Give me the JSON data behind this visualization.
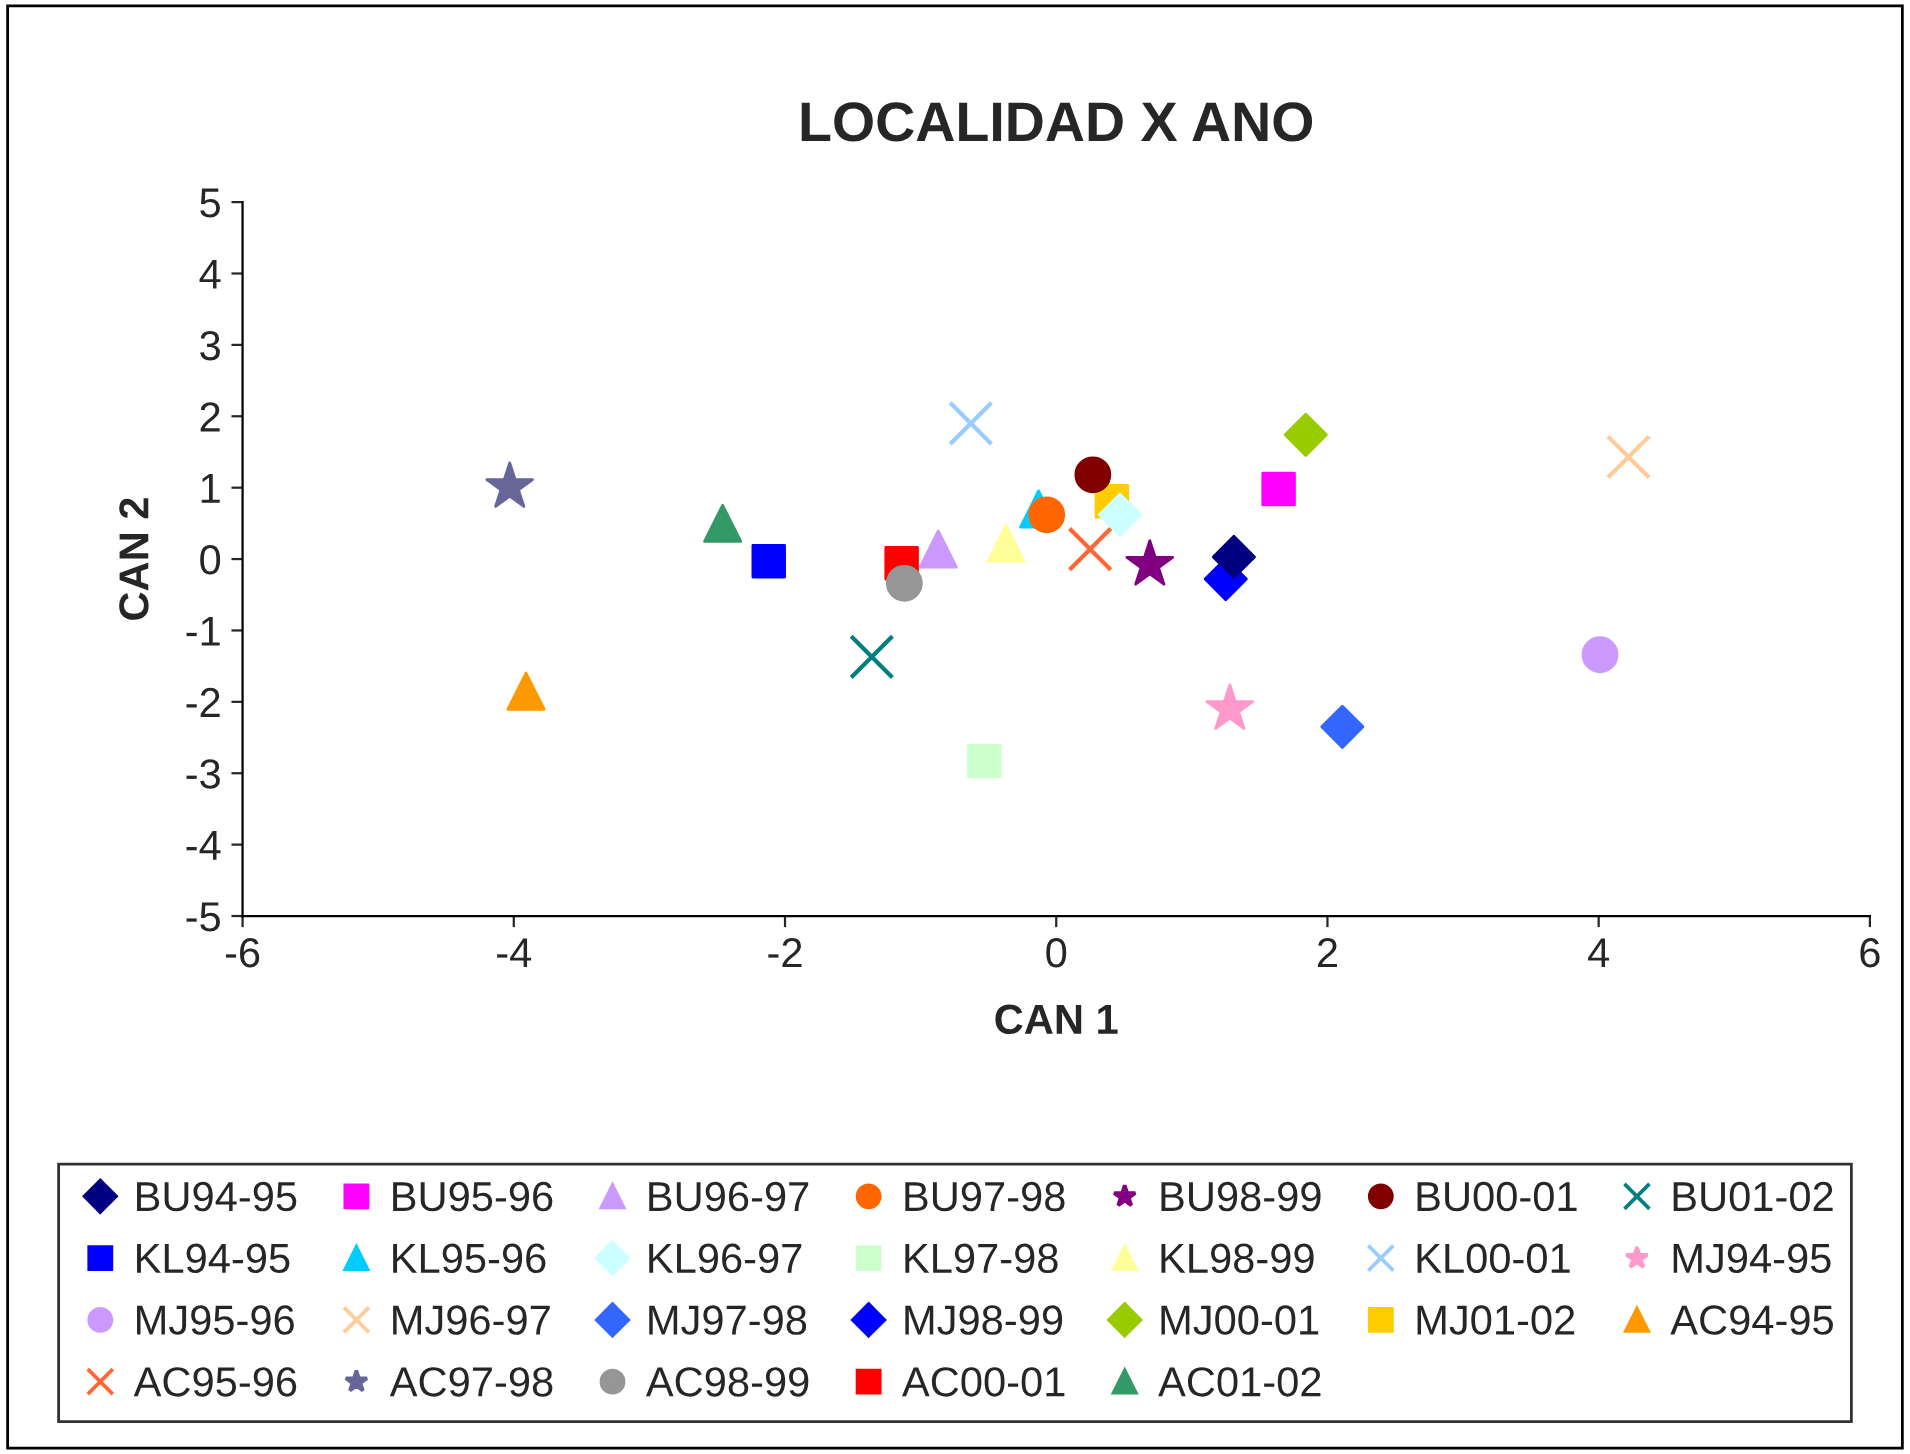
{
  "chart_data": {
    "type": "scatter",
    "title": "LOCALIDAD X ANO",
    "xlabel": "CAN 1",
    "ylabel": "CAN 2",
    "xlim": [
      -6,
      6
    ],
    "xticks": [
      -6,
      -4,
      -2,
      0,
      2,
      4,
      6
    ],
    "ylim": [
      -5,
      5
    ],
    "yticks": [
      -5,
      -4,
      -3,
      -2,
      -1,
      0,
      1,
      2,
      3,
      4,
      5
    ],
    "grid": false,
    "legend": "bottom",
    "series": [
      {
        "name": "BU94-95",
        "color": "#000080",
        "marker": "diamond",
        "x": [
          1.31
        ],
        "values": [
          0.03
        ]
      },
      {
        "name": "BU95-96",
        "color": "#ff00ff",
        "marker": "square",
        "x": [
          1.64
        ],
        "values": [
          0.98
        ]
      },
      {
        "name": "BU96-97",
        "color": "#cc99ff",
        "marker": "triangle",
        "x": [
          -0.87
        ],
        "values": [
          0.14
        ]
      },
      {
        "name": "BU97-98",
        "color": "#ff6600",
        "marker": "circle",
        "x": [
          -0.07
        ],
        "values": [
          0.62
        ]
      },
      {
        "name": "BU98-99",
        "color": "#800080",
        "marker": "star",
        "x": [
          0.69
        ],
        "values": [
          -0.08
        ]
      },
      {
        "name": "BU00-01",
        "color": "#800000",
        "marker": "circle",
        "x": [
          0.27
        ],
        "values": [
          1.18
        ]
      },
      {
        "name": "BU01-02",
        "color": "#008080",
        "marker": "cross",
        "x": [
          -1.36
        ],
        "values": [
          -1.37
        ]
      },
      {
        "name": "KL94-95",
        "color": "#0000ff",
        "marker": "square",
        "x": [
          -2.12
        ],
        "values": [
          -0.03
        ]
      },
      {
        "name": "KL95-96",
        "color": "#00ccff",
        "marker": "triangle",
        "x": [
          -0.13
        ],
        "values": [
          0.7
        ]
      },
      {
        "name": "KL96-97",
        "color": "#ccffff",
        "marker": "diamond",
        "x": [
          0.47
        ],
        "values": [
          0.62
        ]
      },
      {
        "name": "KL97-98",
        "color": "#ccffcc",
        "marker": "square",
        "x": [
          -0.53
        ],
        "values": [
          -2.83
        ]
      },
      {
        "name": "KL98-99",
        "color": "#ffff99",
        "marker": "triangle",
        "x": [
          -0.37
        ],
        "values": [
          0.22
        ]
      },
      {
        "name": "KL00-01",
        "color": "#99ccff",
        "marker": "cross",
        "x": [
          -0.63
        ],
        "values": [
          1.9
        ]
      },
      {
        "name": "MJ94-95",
        "color": "#ff99cc",
        "marker": "star",
        "x": [
          1.28
        ],
        "values": [
          -2.1
        ]
      },
      {
        "name": "MJ95-96",
        "color": "#cc99ff",
        "marker": "circle",
        "x": [
          4.01
        ],
        "values": [
          -1.34
        ]
      },
      {
        "name": "MJ96-97",
        "color": "#ffcc99",
        "marker": "cross",
        "x": [
          4.22
        ],
        "values": [
          1.43
        ]
      },
      {
        "name": "MJ97-98",
        "color": "#3366ff",
        "marker": "diamond",
        "x": [
          2.11
        ],
        "values": [
          -2.35
        ]
      },
      {
        "name": "MJ98-99",
        "color": "#0000ff",
        "marker": "diamond",
        "x": [
          1.25
        ],
        "values": [
          -0.28
        ]
      },
      {
        "name": "MJ00-01",
        "color": "#99cc00",
        "marker": "diamond",
        "x": [
          1.84
        ],
        "values": [
          1.74
        ]
      },
      {
        "name": "MJ01-02",
        "color": "#ffcc00",
        "marker": "square",
        "x": [
          0.41
        ],
        "values": [
          0.81
        ]
      },
      {
        "name": "AC94-95",
        "color": "#ff9900",
        "marker": "triangle",
        "x": [
          -3.91
        ],
        "values": [
          -1.85
        ]
      },
      {
        "name": "AC95-96",
        "color": "#ff6633",
        "marker": "cross",
        "x": [
          0.25
        ],
        "values": [
          0.14
        ]
      },
      {
        "name": "AC97-98",
        "color": "#666699",
        "marker": "star",
        "x": [
          -4.03
        ],
        "values": [
          1.01
        ]
      },
      {
        "name": "AC98-99",
        "color": "#969696",
        "marker": "circle",
        "x": [
          -1.12
        ],
        "values": [
          -0.34
        ]
      },
      {
        "name": "AC00-01",
        "color": "#ff0000",
        "marker": "square",
        "x": [
          -1.14
        ],
        "values": [
          -0.06
        ]
      },
      {
        "name": "AC01-02",
        "color": "#339966",
        "marker": "triangle",
        "x": [
          -2.46
        ],
        "values": [
          0.5
        ]
      }
    ]
  }
}
